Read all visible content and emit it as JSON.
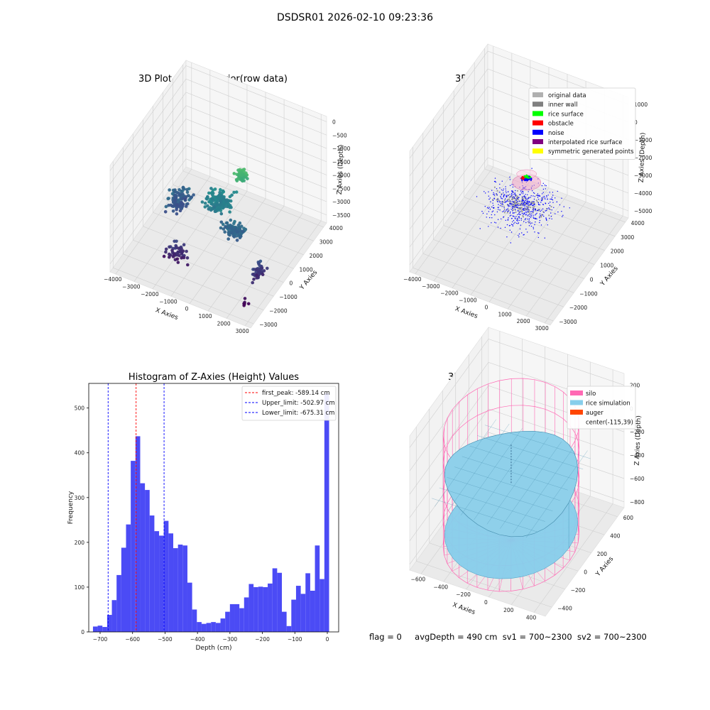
{
  "suptitle": "DSDSR01 2026-02-10 09:23:36",
  "status": {
    "flag": "flag = 0",
    "avg_depth": "avgDepth = 490 cm",
    "sv1": "sv1 = 700~2300",
    "sv2": "sv2 = 700~2300"
  },
  "chart_data": [
    {
      "type": "scatter",
      "projection": "3d",
      "title": "3D Plot of Silo Interior(row data)",
      "xlabel": "X Axies",
      "ylabel": "Y Axies",
      "zlabel": "Z Axies (Depth)",
      "x_ticks": [
        "−4000",
        "−3000",
        "−2000",
        "−1000",
        "0",
        "1000",
        "2000",
        "3000"
      ],
      "y_ticks": [
        "−3000",
        "−2000",
        "−1000",
        "0",
        "1000",
        "2000",
        "3000",
        "4000"
      ],
      "z_ticks": [
        "0",
        "−500",
        "−1000",
        "−1500",
        "−2000",
        "−2500",
        "−3000",
        "−3500"
      ],
      "xlim": [
        -4300,
        3300
      ],
      "ylim": [
        -3300,
        4300
      ],
      "zlim": [
        -3800,
        200
      ],
      "colormap": "viridis",
      "point_clusters": [
        {
          "x": 500,
          "y": 1000,
          "z": -1100,
          "spread": [
            400,
            400,
            300
          ],
          "count": 60
        },
        {
          "x": -300,
          "y": 300,
          "z": -1900,
          "spread": [
            1000,
            900,
            300
          ],
          "count": 140
        },
        {
          "x": 800,
          "y": -400,
          "z": -2300,
          "spread": [
            900,
            600,
            250
          ],
          "count": 90
        },
        {
          "x": -2500,
          "y": 300,
          "z": -2500,
          "spread": [
            800,
            1200,
            400
          ],
          "count": 110
        },
        {
          "x": -1500,
          "y": -1800,
          "z": -3100,
          "spread": [
            900,
            500,
            400
          ],
          "count": 50
        },
        {
          "x": 2600,
          "y": -1300,
          "z": -2900,
          "spread": [
            400,
            800,
            400
          ],
          "count": 45
        },
        {
          "x": 2500,
          "y": -2500,
          "z": -3500,
          "spread": [
            300,
            300,
            150
          ],
          "count": 6
        }
      ]
    },
    {
      "type": "scatter",
      "projection": "3d",
      "title": "3D classify of Silo Interior",
      "xlabel": "X Axies",
      "ylabel": "Y Axies",
      "zlabel": "Z Axies (Depth)",
      "x_ticks": [
        "−4000",
        "−3000",
        "−2000",
        "−1000",
        "0",
        "1000",
        "2000",
        "3000"
      ],
      "y_ticks": [
        "−3000",
        "−2000",
        "−1000",
        "0",
        "1000",
        "2000",
        "3000",
        "4000"
      ],
      "z_ticks": [
        "1000",
        "0",
        "−1000",
        "−2000",
        "−3000",
        "−4000",
        "−5000"
      ],
      "xlim": [
        -4300,
        3300
      ],
      "ylim": [
        -3300,
        4300
      ],
      "zlim": [
        -5400,
        1400
      ],
      "legend_position": "top-right",
      "legend": [
        {
          "label": "original data",
          "color": "#b0b0b0"
        },
        {
          "label": "inner wall",
          "color": "#808080"
        },
        {
          "label": "rice surface",
          "color": "#00ff00"
        },
        {
          "label": "obstacle",
          "color": "#ff0000"
        },
        {
          "label": "noise",
          "color": "#0000ff"
        },
        {
          "label": "interpolated rice surface",
          "color": "#800080"
        },
        {
          "label": "symmetric generated points",
          "color": "#ffff00"
        }
      ]
    },
    {
      "type": "bar",
      "title": "Histogram of Z-Axies (Height) Values",
      "xlabel": "Depth (cm)",
      "ylabel": "Frequency",
      "xlim": [
        -735,
        35
      ],
      "ylim": [
        0,
        555
      ],
      "x_ticks": [
        -700,
        -600,
        -500,
        -400,
        -300,
        -200,
        -100,
        0
      ],
      "x_tick_labels": [
        "−700",
        "−600",
        "−500",
        "−400",
        "−300",
        "−200",
        "−100",
        "0"
      ],
      "y_ticks": [
        0,
        100,
        200,
        300,
        400,
        500
      ],
      "bar_color": "#4b4bf5",
      "bin_width": 14.55,
      "bin_start": -722,
      "values": [
        12,
        14,
        11,
        38,
        71,
        127,
        188,
        240,
        382,
        437,
        332,
        317,
        260,
        225,
        215,
        248,
        220,
        187,
        195,
        193,
        110,
        50,
        22,
        18,
        20,
        22,
        20,
        30,
        45,
        62,
        62,
        53,
        77,
        107,
        100,
        101,
        100,
        108,
        142,
        132,
        45,
        13,
        72,
        103,
        85,
        131,
        92,
        193,
        118,
        533
      ],
      "vlines": [
        {
          "label": "first_peak: -589.14 cm",
          "value": -589.14,
          "color": "#ff0000"
        },
        {
          "label": "Upper_limit: -502.97 cm",
          "value": -502.97,
          "color": "#0000ff"
        },
        {
          "label": "Lower_limit: -675.31 cm",
          "value": -675.31,
          "color": "#0000ff"
        }
      ],
      "legend_position": "top-right"
    },
    {
      "type": "surface",
      "projection": "3d",
      "title": "3D simulation of Silo Interior",
      "xlabel": "X Axies",
      "ylabel": "Y Axies",
      "zlabel": "Z Axies (Depth)",
      "x_ticks": [
        "−600",
        "−400",
        "−200",
        "0",
        "200",
        "400"
      ],
      "y_ticks": [
        "−400",
        "−200",
        "0",
        "200",
        "400",
        "600"
      ],
      "z_ticks": [
        "200",
        "0",
        "−200",
        "−400",
        "−600",
        "−800"
      ],
      "xlim": [
        -700,
        500
      ],
      "ylim": [
        -500,
        700
      ],
      "zlim": [
        -850,
        300
      ],
      "legend_position": "top-right",
      "legend": [
        {
          "label": "silo",
          "color": "#ff69b4"
        },
        {
          "label": "rice simulation",
          "color": "#87ceeb"
        },
        {
          "label": "auger",
          "color": "#ff4500"
        },
        {
          "label": "center(-115,39)",
          "color": "none"
        }
      ]
    }
  ]
}
